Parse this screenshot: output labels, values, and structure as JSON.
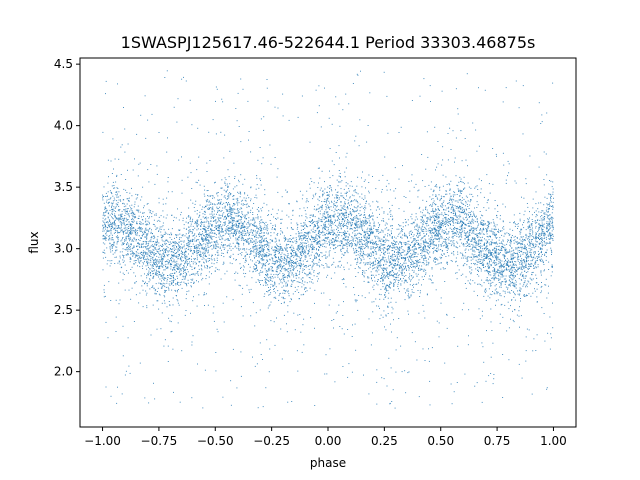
{
  "chart_data": {
    "type": "scatter",
    "title": "1SWASPJ125617.46-522644.1 Period 33303.46875s",
    "xlabel": "phase",
    "ylabel": "flux",
    "xlim": [
      -1.1,
      1.1
    ],
    "ylim": [
      1.55,
      4.55
    ],
    "x_ticks": [
      -1.0,
      -0.75,
      -0.5,
      -0.25,
      0.0,
      0.25,
      0.5,
      0.75,
      1.0
    ],
    "x_tick_labels": [
      "−1.00",
      "−0.75",
      "−0.50",
      "−0.25",
      "0.00",
      "0.25",
      "0.50",
      "0.75",
      "1.00"
    ],
    "y_ticks": [
      2.0,
      2.5,
      3.0,
      3.5,
      4.0,
      4.5
    ],
    "y_tick_labels": [
      "2.0",
      "2.5",
      "3.0",
      "3.5",
      "4.0",
      "4.5"
    ],
    "grid": false,
    "marker_color": "#1f77b4",
    "x_range": [
      -1.0,
      1.0
    ],
    "mean_flux": 3.05,
    "amplitude": 0.17,
    "cycles_per_phase_unit": 2,
    "max_flux_phase": 0.05,
    "core_scatter": 0.16,
    "outlier_range": [
      1.7,
      4.45
    ]
  }
}
